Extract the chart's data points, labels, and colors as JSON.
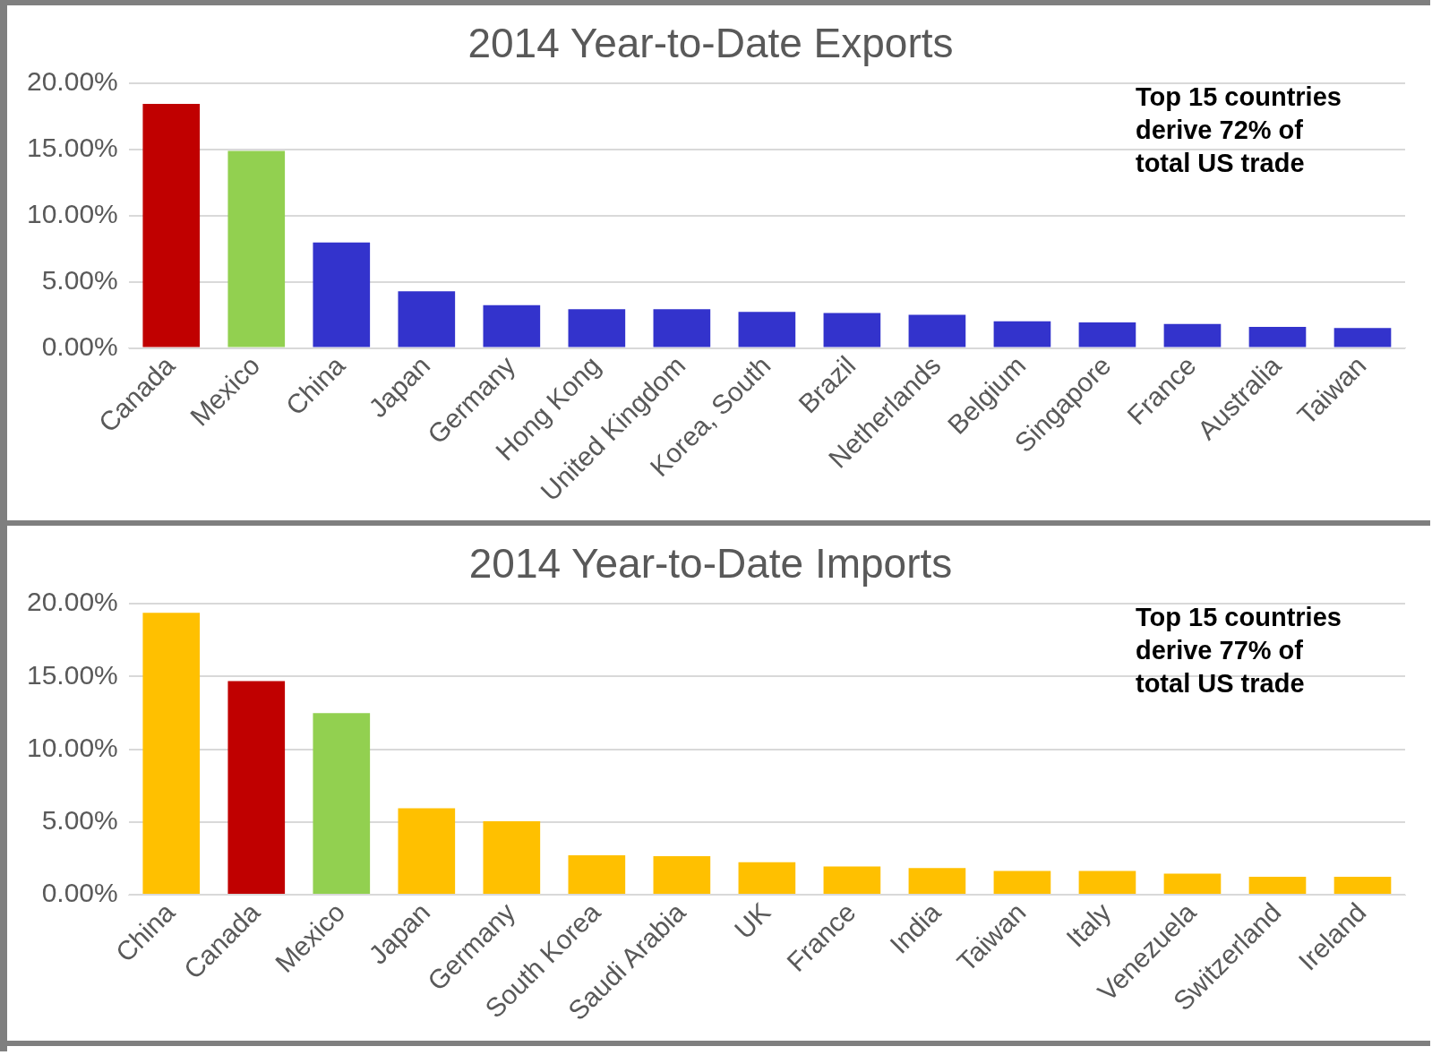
{
  "chart_data": [
    {
      "type": "bar",
      "title": "2014 Year-to-Date Exports",
      "categories": [
        "Canada",
        "Mexico",
        "China",
        "Japan",
        "Germany",
        "Hong Kong",
        "United Kingdom",
        "Korea, South",
        "Brazil",
        "Netherlands",
        "Belgium",
        "Singapore",
        "France",
        "Australia",
        "Taiwan"
      ],
      "values": [
        18.45,
        14.9,
        7.98,
        4.29,
        3.24,
        2.94,
        2.94,
        2.73,
        2.65,
        2.52,
        2.02,
        1.93,
        1.81,
        1.6,
        1.51
      ],
      "colors": [
        "#c00000",
        "#92d050",
        "#3333cc",
        "#3333cc",
        "#3333cc",
        "#3333cc",
        "#3333cc",
        "#3333cc",
        "#3333cc",
        "#3333cc",
        "#3333cc",
        "#3333cc",
        "#3333cc",
        "#3333cc",
        "#3333cc"
      ],
      "ylim": [
        0,
        20
      ],
      "yticks": [
        {
          "value": 0,
          "label": "0.00%"
        },
        {
          "value": 5,
          "label": "5.00%"
        },
        {
          "value": 10,
          "label": "10.00%"
        },
        {
          "value": 15,
          "label": "15.00%"
        },
        {
          "value": 20,
          "label": "20.00%"
        }
      ],
      "grid": "y",
      "legend": false,
      "annotations": [
        "Top 15 countries derive 72% of total US trade"
      ]
    },
    {
      "type": "bar",
      "title": "2014 Year-to-Date Imports",
      "categories": [
        "China",
        "Canada",
        "Mexico",
        "Japan",
        "Germany",
        "South Korea",
        "Saudi Arabia",
        "UK",
        "France",
        "India",
        "Taiwan",
        "Italy",
        "Venezuela",
        "Switzerland",
        "Ireland"
      ],
      "values": [
        19.38,
        14.68,
        12.49,
        5.94,
        5.06,
        2.72,
        2.65,
        2.23,
        1.95,
        1.84,
        1.63,
        1.63,
        1.45,
        1.24,
        1.24
      ],
      "colors": [
        "#ffc000",
        "#c00000",
        "#92d050",
        "#ffc000",
        "#ffc000",
        "#ffc000",
        "#ffc000",
        "#ffc000",
        "#ffc000",
        "#ffc000",
        "#ffc000",
        "#ffc000",
        "#ffc000",
        "#ffc000",
        "#ffc000"
      ],
      "ylim": [
        0,
        20
      ],
      "yticks": [
        {
          "value": 0,
          "label": "0.00%"
        },
        {
          "value": 5,
          "label": "5.00%"
        },
        {
          "value": 10,
          "label": "10.00%"
        },
        {
          "value": 15,
          "label": "15.00%"
        },
        {
          "value": 20,
          "label": "20.00%"
        }
      ],
      "grid": "y",
      "legend": false,
      "annotations": [
        "Top 15 countries derive 77% of total US trade"
      ]
    }
  ]
}
